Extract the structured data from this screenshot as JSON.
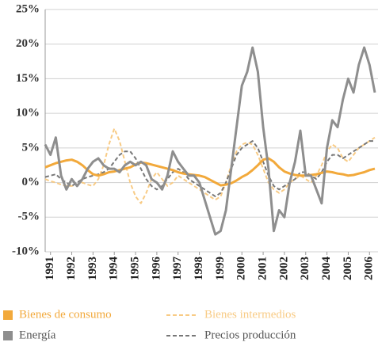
{
  "chart_data": {
    "type": "line",
    "x": [
      1990.75,
      1991,
      1991.25,
      1991.5,
      1991.75,
      1992,
      1992.25,
      1992.5,
      1992.75,
      1993,
      1993.25,
      1993.5,
      1993.75,
      1994,
      1994.25,
      1994.5,
      1994.75,
      1995,
      1995.25,
      1995.5,
      1995.75,
      1996,
      1996.25,
      1996.5,
      1996.75,
      1997,
      1997.25,
      1997.5,
      1997.75,
      1998,
      1998.25,
      1998.5,
      1998.75,
      1999,
      1999.25,
      1999.5,
      1999.75,
      2000,
      2000.25,
      2000.5,
      2000.75,
      2001,
      2001.25,
      2001.5,
      2001.75,
      2002,
      2002.25,
      2002.5,
      2002.75,
      2003,
      2003.25,
      2003.5,
      2003.75,
      2004,
      2004.25,
      2004.5,
      2004.75,
      2005,
      2005.25,
      2005.5,
      2005.75,
      2006,
      2006.25
    ],
    "series": [
      {
        "name": "Bienes de consumo",
        "color": "#f2a93b",
        "dashed": false,
        "values": [
          2.2,
          2.5,
          2.8,
          3.0,
          3.2,
          3.3,
          3.0,
          2.5,
          1.8,
          1.2,
          1.0,
          1.2,
          1.5,
          1.6,
          1.8,
          2.0,
          2.2,
          2.6,
          2.9,
          2.8,
          2.6,
          2.4,
          2.2,
          2.0,
          1.8,
          1.5,
          1.3,
          1.2,
          1.1,
          1.0,
          0.8,
          0.4,
          0,
          -0.4,
          -0.3,
          -0.1,
          0.3,
          0.8,
          1.2,
          1.8,
          2.5,
          3.3,
          3.5,
          3.0,
          2.2,
          1.6,
          1.3,
          1.1,
          1.0,
          1.0,
          1.1,
          1.2,
          1.4,
          1.6,
          1.5,
          1.3,
          1.2,
          1.0,
          1.1,
          1.3,
          1.5,
          1.8,
          2.0
        ]
      },
      {
        "name": "Bienes intermedios",
        "color": "#f8cb85",
        "dashed": true,
        "values": [
          0.5,
          0.2,
          0,
          -0.3,
          -0.5,
          -0.5,
          -0.3,
          0,
          -0.3,
          -0.5,
          0.5,
          2.5,
          5.5,
          7.8,
          6.0,
          3.0,
          0,
          -2.0,
          -3.0,
          -1.5,
          0.5,
          1.5,
          0.5,
          -0.5,
          0,
          1.0,
          0.5,
          0,
          -0.5,
          -1.0,
          -1.5,
          -2.0,
          -2.5,
          -2.0,
          0,
          2.5,
          4.5,
          5.5,
          5.8,
          5.5,
          4.0,
          2.0,
          0,
          -1.0,
          -1.5,
          -1.0,
          0,
          0.5,
          1.0,
          0.5,
          0,
          1.0,
          2.5,
          4.5,
          5.5,
          5.0,
          3.5,
          3.0,
          4.0,
          5.0,
          5.5,
          6.0,
          6.5
        ]
      },
      {
        "name": "Energía",
        "color": "#8e8e8e",
        "dashed": false,
        "values": [
          5.5,
          4.0,
          6.5,
          1.0,
          -1.0,
          0.5,
          -0.5,
          0.5,
          2.0,
          3.0,
          3.5,
          2.5,
          2.0,
          2.0,
          1.5,
          2.5,
          3.0,
          2.5,
          3.0,
          2.5,
          0.5,
          0,
          -1.0,
          1.0,
          4.5,
          3.0,
          2.0,
          1.0,
          1.0,
          0,
          -2.5,
          -5.0,
          -7.5,
          -7.0,
          -4.0,
          2.0,
          8.0,
          14.0,
          16.0,
          19.5,
          16.0,
          8.0,
          2.0,
          -7.0,
          -4.0,
          -5.0,
          0,
          3.0,
          7.5,
          1.0,
          1.0,
          -1.0,
          -3.0,
          5.0,
          9.0,
          8.0,
          12.0,
          15.0,
          13.0,
          17.0,
          19.5,
          17.0,
          13.0
        ]
      },
      {
        "name": "Precios producción",
        "color": "#777777",
        "dashed": true,
        "values": [
          0.8,
          1.0,
          1.2,
          0.5,
          0,
          -0.5,
          0,
          0.5,
          0.8,
          1.0,
          1.2,
          1.5,
          2.0,
          3.0,
          4.0,
          4.5,
          4.5,
          3.5,
          2.0,
          0.5,
          -0.5,
          -1.0,
          -0.5,
          0.5,
          1.5,
          2.0,
          1.5,
          0.5,
          0,
          -0.5,
          -1.0,
          -1.5,
          -2.0,
          -1.5,
          0,
          2.0,
          4.0,
          5.0,
          5.5,
          6.0,
          5.0,
          3.0,
          1.0,
          -0.5,
          -1.0,
          -0.5,
          0,
          0.5,
          1.5,
          1.5,
          1.0,
          0.5,
          1.5,
          3.0,
          4.0,
          4.0,
          3.5,
          4.0,
          4.5,
          5.0,
          5.5,
          6.0,
          6.0
        ]
      }
    ],
    "xlim": [
      1990.75,
      2006.4
    ],
    "xticks": [
      1991,
      1992,
      1993,
      1994,
      1995,
      1996,
      1997,
      1998,
      1999,
      2000,
      2001,
      2002,
      2003,
      2004,
      2005,
      2006
    ],
    "ylim": [
      -10,
      25
    ],
    "yticks": [
      {
        "value": -10,
        "label": "-10%"
      },
      {
        "value": -5,
        "label": "-5%"
      },
      {
        "value": 0,
        "label": "0%"
      },
      {
        "value": 5,
        "label": "5%"
      },
      {
        "value": 10,
        "label": "10%"
      },
      {
        "value": 15,
        "label": "15%"
      },
      {
        "value": 20,
        "label": "20%"
      },
      {
        "value": 25,
        "label": "25%"
      }
    ],
    "grid": true,
    "legend": "bottom"
  }
}
